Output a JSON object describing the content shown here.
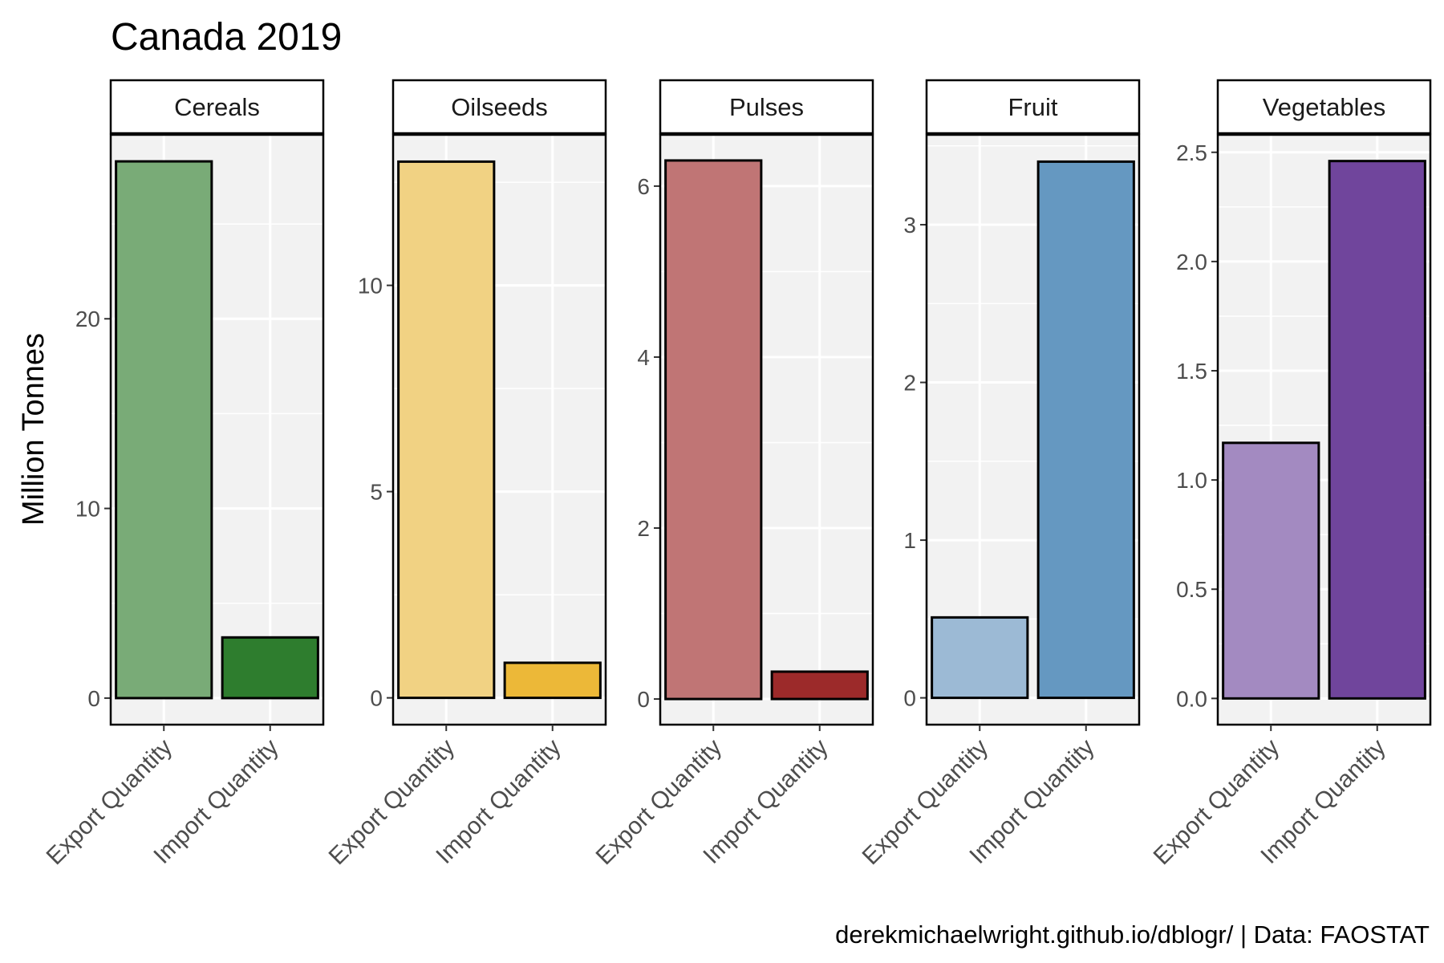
{
  "chart_data": {
    "type": "bar",
    "title": "Canada 2019",
    "ylabel": "Million Tonnes",
    "caption": "derekmichaelwright.github.io/dblogr/ | Data: FAOSTAT",
    "categories": [
      "Export Quantity",
      "Import Quantity"
    ],
    "grid": true,
    "legend": "none",
    "panels": [
      {
        "name": "Cereals",
        "values": [
          28.3,
          3.2
        ],
        "colors": [
          "#79ab77",
          "#2e7d2e"
        ],
        "ylim": [
          -1.4,
          29.7
        ],
        "yticks": [
          0,
          10,
          20
        ],
        "tick_labels": [
          "0",
          "10",
          "20"
        ]
      },
      {
        "name": "Oilseeds",
        "values": [
          13.0,
          0.85
        ],
        "colors": [
          "#f1d283",
          "#ecb838"
        ],
        "ylim": [
          -0.65,
          13.65
        ],
        "yticks": [
          0,
          5,
          10
        ],
        "tick_labels": [
          "0",
          "5",
          "10"
        ]
      },
      {
        "name": "Pulses",
        "values": [
          6.3,
          0.32
        ],
        "colors": [
          "#c07575",
          "#9c2a2a"
        ],
        "ylim": [
          -0.3,
          6.6
        ],
        "yticks": [
          0,
          2,
          4,
          6
        ],
        "tick_labels": [
          "0",
          "2",
          "4",
          "6"
        ]
      },
      {
        "name": "Fruit",
        "values": [
          0.51,
          3.4
        ],
        "colors": [
          "#9cbad5",
          "#6598c1"
        ],
        "ylim": [
          -0.17,
          3.57
        ],
        "yticks": [
          0,
          1,
          2,
          3
        ],
        "tick_labels": [
          "0",
          "1",
          "2",
          "3"
        ]
      },
      {
        "name": "Vegetables",
        "values": [
          1.17,
          2.46
        ],
        "colors": [
          "#a38ac1",
          "#70459c"
        ],
        "ylim": [
          -0.12,
          2.58
        ],
        "yticks": [
          0.0,
          0.5,
          1.0,
          1.5,
          2.0,
          2.5
        ],
        "tick_labels": [
          "0.0",
          "0.5",
          "1.0",
          "1.5",
          "2.0",
          "2.5"
        ]
      }
    ]
  }
}
